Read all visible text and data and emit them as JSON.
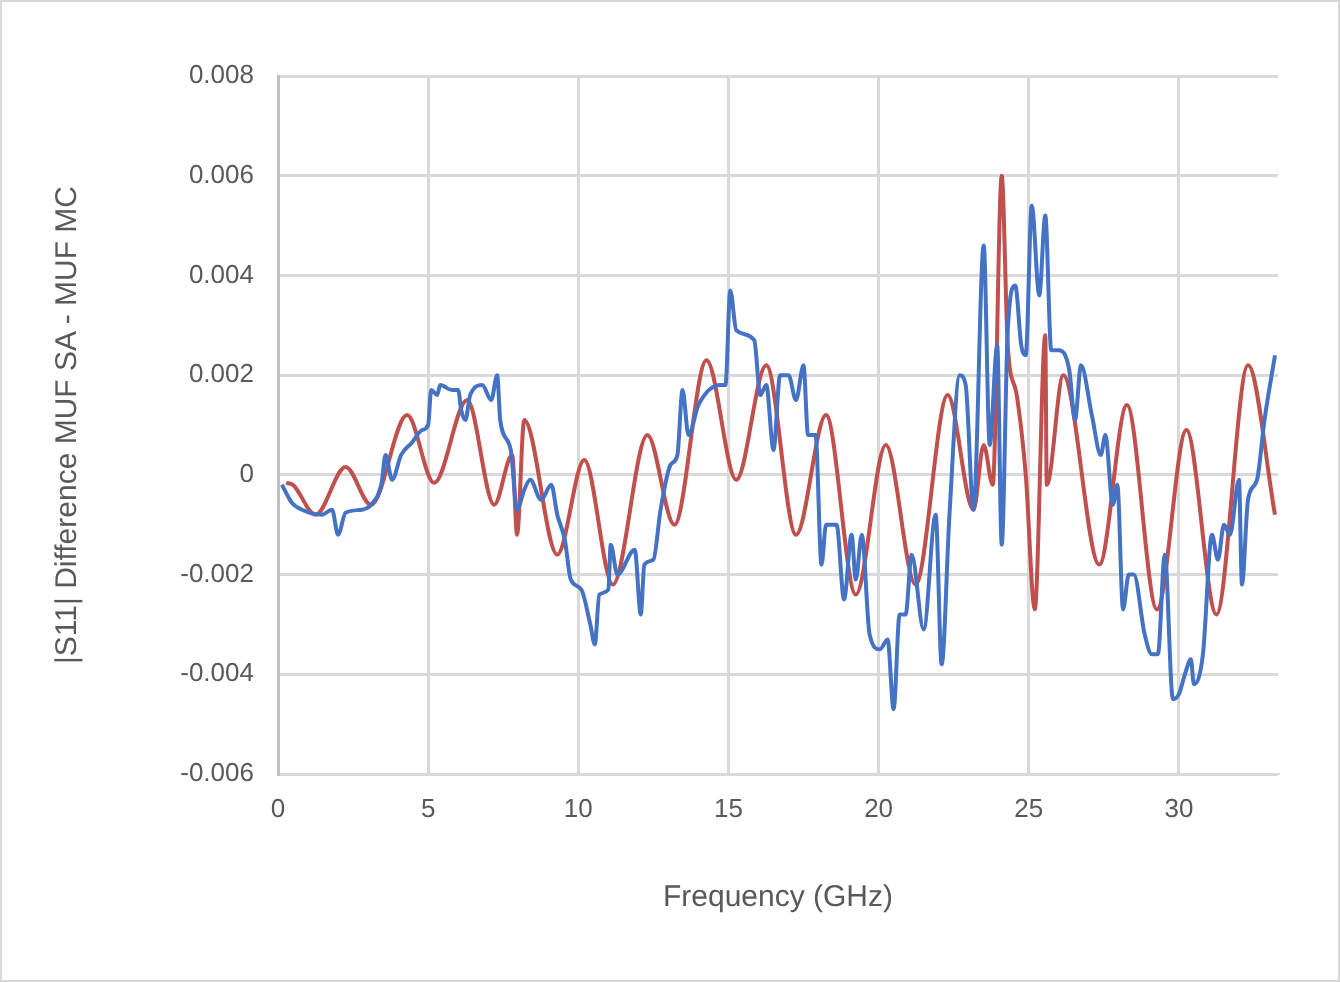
{
  "chart_data": {
    "type": "line",
    "xlabel": "Frequency (GHz)",
    "ylabel": "|S11| Difference MUF SA - MUF MC",
    "xlim": [
      0,
      33.3
    ],
    "xticks": [
      0,
      5,
      10,
      15,
      20,
      25,
      30
    ],
    "ylim": [
      -0.006,
      0.008
    ],
    "yticks": [
      -0.006,
      -0.004,
      -0.002,
      0,
      0.002,
      0.004,
      0.006,
      0.008
    ],
    "grid": true,
    "legend": false,
    "marker": "none",
    "line_style": "solid",
    "series": [
      {
        "color": "#4472c4",
        "x": [
          0.13,
          0.46,
          0.8,
          1.46,
          1.8,
          2.0,
          2.25,
          2.8,
          3.1,
          3.45,
          3.58,
          3.8,
          4.1,
          4.45,
          4.8,
          5.0,
          5.1,
          5.3,
          5.4,
          5.8,
          6.0,
          6.1,
          6.24,
          6.4,
          6.8,
          7.1,
          7.3,
          7.4,
          7.75,
          7.96,
          8.2,
          8.4,
          8.76,
          9.1,
          9.3,
          9.55,
          9.75,
          10.1,
          10.4,
          10.55,
          10.7,
          11.0,
          11.08,
          11.3,
          11.88,
          12.08,
          12.2,
          12.5,
          12.74,
          13.07,
          13.3,
          13.47,
          13.67,
          14.0,
          14.73,
          14.9,
          15.06,
          15.26,
          15.86,
          16.06,
          16.26,
          16.5,
          16.72,
          17.0,
          17.25,
          17.5,
          17.65,
          17.9,
          18.1,
          18.25,
          18.6,
          18.85,
          19.1,
          19.24,
          19.44,
          19.7,
          20.04,
          20.3,
          20.5,
          20.7,
          20.9,
          21.1,
          21.5,
          21.9,
          22.1,
          22.36,
          22.7,
          22.9,
          23.16,
          23.5,
          23.7,
          23.95,
          24.1,
          24.3,
          24.55,
          24.75,
          24.9,
          25.1,
          25.35,
          25.55,
          25.75,
          26.0,
          26.35,
          26.54,
          26.74,
          27.1,
          27.4,
          27.55,
          27.8,
          27.95,
          28.14,
          28.33,
          28.5,
          28.86,
          29.1,
          29.3,
          29.53,
          29.8,
          30.0,
          30.2,
          30.4,
          30.5,
          30.8,
          31.1,
          31.3,
          31.5,
          31.7,
          32.0,
          32.1,
          32.3,
          32.6,
          32.85,
          33.2
        ],
        "values": [
          -0.0002,
          -0.00056,
          -0.0007,
          -0.0008,
          -0.0007,
          -0.0012,
          -0.00076,
          -0.0007,
          -0.0006,
          -0.00016,
          0.0004,
          -0.0001,
          0.0004,
          0.00064,
          0.0009,
          0.001,
          0.0017,
          0.0016,
          0.0018,
          0.0017,
          0.0017,
          0.0013,
          0.0011,
          0.0016,
          0.0018,
          0.0015,
          0.002,
          0.0011,
          0.0005,
          -0.0007,
          -0.0003,
          -0.0001,
          -0.0005,
          -0.0002,
          -0.0008,
          -0.0013,
          -0.0021,
          -0.0023,
          -0.003,
          -0.0034,
          -0.0024,
          -0.0023,
          -0.0014,
          -0.002,
          -0.0015,
          -0.0028,
          -0.0018,
          -0.0017,
          -0.0007,
          0.0002,
          0.0004,
          0.0017,
          0.0008,
          0.0014,
          0.0018,
          0.0018,
          0.0037,
          0.0029,
          0.0027,
          0.0016,
          0.0018,
          0.0005,
          0.002,
          0.002,
          0.0015,
          0.0022,
          0.0008,
          0.0008,
          -0.0018,
          -0.001,
          -0.001,
          -0.0025,
          -0.0012,
          -0.0021,
          -0.0012,
          -0.0032,
          -0.0035,
          -0.0033,
          -0.0047,
          -0.0028,
          -0.0028,
          -0.0016,
          -0.0031,
          -0.0008,
          -0.0038,
          -0.0008,
          0.002,
          0.0018,
          -0.0007,
          0.0046,
          0.0006,
          0.0026,
          -0.0014,
          0.0029,
          0.0038,
          0.0026,
          0.0024,
          0.0054,
          0.0036,
          0.0052,
          0.0025,
          0.0025,
          0.0021,
          0.0011,
          0.0022,
          0.0012,
          0.0004,
          0.0008,
          -0.0006,
          -0.0002,
          -0.0027,
          -0.002,
          -0.002,
          -0.0032,
          -0.0036,
          -0.0036,
          -0.0016,
          -0.0045,
          -0.0044,
          -0.004,
          -0.0037,
          -0.0042,
          -0.0036,
          -0.0012,
          -0.0017,
          -0.001,
          -0.0012,
          -0.0001,
          -0.0022,
          -0.0005,
          -0.0001,
          0.0011,
          0.0024
        ]
      },
      {
        "color": "#c0504d",
        "x": [
          0.27,
          0.5,
          1.25,
          2.25,
          3.1,
          4.3,
          5.2,
          6.3,
          7.2,
          7.8,
          7.96,
          8.2,
          9.3,
          10.2,
          11.15,
          12.3,
          13.2,
          14.27,
          15.26,
          16.26,
          17.25,
          18.25,
          19.24,
          20.24,
          21.23,
          22.3,
          23.16,
          23.5,
          23.8,
          24.1,
          24.3,
          24.6,
          24.9,
          25.2,
          25.55,
          25.6,
          26.15,
          27.35,
          28.27,
          29.27,
          30.25,
          31.25,
          32.3,
          33.2
        ],
        "values": [
          -0.00016,
          -0.0002,
          -0.0008,
          0.00016,
          -0.0006,
          0.0012,
          -0.00016,
          0.0015,
          -0.0006,
          0.0004,
          -0.0012,
          0.0011,
          -0.0016,
          0.0003,
          -0.0022,
          0.0008,
          -0.001,
          0.0023,
          -0.0001,
          0.0022,
          -0.0012,
          0.0012,
          -0.0024,
          0.0006,
          -0.0022,
          0.0016,
          -0.0007,
          0.0006,
          -0.0002,
          0.006,
          0.0026,
          0.0016,
          0.0,
          -0.0027,
          0.0028,
          -0.0002,
          0.002,
          -0.0018,
          0.0014,
          -0.0027,
          0.0009,
          -0.0028,
          0.0022,
          -0.0008
        ]
      }
    ]
  }
}
